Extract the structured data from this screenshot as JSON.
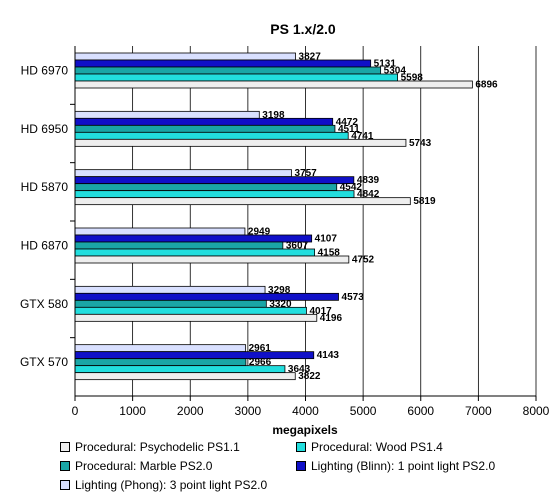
{
  "chart_data": {
    "type": "bar",
    "orientation": "horizontal",
    "title": "PS 1.x/2.0",
    "xlabel": "megapixels",
    "ylabel": "",
    "xlim": [
      0,
      8000
    ],
    "xticks": [
      0,
      1000,
      2000,
      3000,
      4000,
      5000,
      6000,
      7000,
      8000
    ],
    "grid": "vertical",
    "legend_position": "bottom",
    "categories": [
      "HD 6970",
      "HD 6950",
      "HD 5870",
      "HD 6870",
      "GTX 580",
      "GTX 570"
    ],
    "series": [
      {
        "name": "Lighting (Phong): 3 point light PS2.0",
        "color": "#d9e0ff",
        "values": [
          3827,
          3198,
          3757,
          2949,
          3298,
          2961
        ]
      },
      {
        "name": "Lighting (Blinn): 1 point light PS2.0",
        "color": "#1010c8",
        "values": [
          5131,
          4472,
          4839,
          4107,
          4573,
          4143
        ]
      },
      {
        "name": "Procedural: Marble PS2.0",
        "color": "#1aa6a6",
        "values": [
          5304,
          4511,
          4542,
          3607,
          3320,
          2966
        ]
      },
      {
        "name": "Procedural: Wood PS1.4",
        "color": "#22dede",
        "values": [
          5598,
          4741,
          4842,
          4158,
          4017,
          3643
        ]
      },
      {
        "name": "Procedural: Psychodelic PS1.1",
        "color": "#eeeeee",
        "values": [
          6896,
          5743,
          5819,
          4752,
          4196,
          3822
        ]
      }
    ]
  },
  "legend": {
    "entries": [
      {
        "series_index": 4
      },
      {
        "series_index": 3
      },
      {
        "series_index": 2
      },
      {
        "series_index": 1
      },
      {
        "series_index": 0
      }
    ]
  }
}
